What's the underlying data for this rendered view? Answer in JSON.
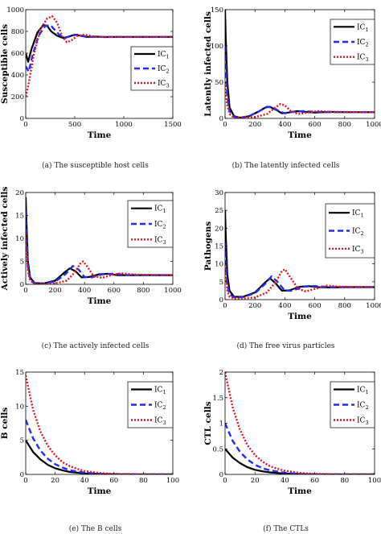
{
  "figure": {
    "captions": [
      "(a) The susceptible host cells",
      "(b) The latently infected cells",
      "(c) The actively infected cells",
      "(d) The free virus particles",
      "(e) The B cells",
      "(f) The CTLs"
    ]
  },
  "colors": {
    "ic1": "#000000",
    "ic2": "#1f2bff",
    "ic3": "#e8141b"
  },
  "chart_data": [
    {
      "type": "line",
      "title": "",
      "xlabel": "Time",
      "ylabel": "Susceptible cells",
      "xlim": [
        0,
        1500
      ],
      "ylim": [
        0,
        1000
      ],
      "xticks": [
        0,
        500,
        1000,
        1500
      ],
      "yticks": [
        0,
        200,
        400,
        600,
        800,
        1000
      ],
      "legend": "right",
      "grid": false,
      "series": [
        {
          "name": "IC",
          "sub": "1",
          "color": "#000000",
          "dash": "solid",
          "x": [
            0,
            25,
            60,
            120,
            180,
            220,
            260,
            320,
            380,
            430,
            500,
            560,
            620,
            700,
            800,
            1000,
            1500
          ],
          "y": [
            600,
            520,
            640,
            790,
            860,
            850,
            800,
            760,
            740,
            750,
            770,
            760,
            750,
            752,
            748,
            750,
            750
          ]
        },
        {
          "name": "IC",
          "sub": "2",
          "color": "#1f2bff",
          "dash": "dashed",
          "x": [
            0,
            30,
            70,
            130,
            200,
            250,
            290,
            340,
            400,
            460,
            530,
            600,
            680,
            800,
            1000,
            1500
          ],
          "y": [
            480,
            430,
            580,
            760,
            850,
            860,
            820,
            770,
            740,
            760,
            770,
            755,
            750,
            750,
            750,
            750
          ]
        },
        {
          "name": "IC",
          "sub": "3",
          "color": "#e8141b",
          "dash": "dotted",
          "x": [
            0,
            30,
            80,
            150,
            220,
            270,
            320,
            370,
            420,
            470,
            530,
            600,
            680,
            800,
            1000,
            1500
          ],
          "y": [
            200,
            320,
            580,
            820,
            920,
            940,
            880,
            760,
            700,
            720,
            760,
            770,
            755,
            750,
            750,
            750
          ]
        }
      ]
    },
    {
      "type": "line",
      "title": "",
      "xlabel": "Time",
      "ylabel": "Latently infected cells",
      "xlim": [
        0,
        1000
      ],
      "ylim": [
        0,
        150
      ],
      "xticks": [
        0,
        200,
        400,
        600,
        800,
        1000
      ],
      "yticks": [
        0,
        50,
        100,
        150
      ],
      "legend": "top-right",
      "grid": false,
      "series": [
        {
          "name": "IC",
          "sub": "1",
          "color": "#000000",
          "dash": "solid",
          "x": [
            0,
            5,
            15,
            30,
            60,
            100,
            160,
            220,
            270,
            300,
            340,
            380,
            420,
            480,
            540,
            600,
            700,
            800,
            1000
          ],
          "y": [
            150,
            110,
            50,
            15,
            3,
            1,
            3,
            9,
            15,
            16,
            12,
            7,
            8,
            10,
            9,
            8,
            9,
            8.5,
            8.5
          ]
        },
        {
          "name": "IC",
          "sub": "2",
          "color": "#1f2bff",
          "dash": "dashed",
          "x": [
            0,
            5,
            15,
            30,
            60,
            100,
            160,
            230,
            280,
            320,
            360,
            400,
            450,
            520,
            600,
            700,
            1000
          ],
          "y": [
            100,
            70,
            30,
            10,
            2,
            1,
            3,
            10,
            16,
            15,
            10,
            7,
            9,
            10,
            9,
            8.5,
            8.5
          ]
        },
        {
          "name": "IC",
          "sub": "3",
          "color": "#e8141b",
          "dash": "dotted",
          "x": [
            0,
            5,
            15,
            30,
            60,
            120,
            200,
            280,
            330,
            370,
            400,
            440,
            490,
            550,
            620,
            700,
            1000
          ],
          "y": [
            50,
            35,
            18,
            6,
            1,
            1,
            2,
            6,
            14,
            20,
            18,
            10,
            6,
            8,
            10,
            9,
            8.5
          ]
        }
      ]
    },
    {
      "type": "line",
      "title": "",
      "xlabel": "Time",
      "ylabel": "Actively infected cells",
      "xlim": [
        0,
        1000
      ],
      "ylim": [
        0,
        20
      ],
      "xticks": [
        0,
        200,
        400,
        600,
        800,
        1000
      ],
      "yticks": [
        0,
        5,
        10,
        15,
        20
      ],
      "legend": "top-right",
      "grid": false,
      "series": [
        {
          "name": "IC",
          "sub": "1",
          "color": "#000000",
          "dash": "solid",
          "x": [
            0,
            5,
            15,
            30,
            60,
            120,
            200,
            260,
            300,
            340,
            380,
            430,
            500,
            560,
            620,
            700,
            800,
            1000
          ],
          "y": [
            19,
            14,
            5,
            1.5,
            0.3,
            0.2,
            0.8,
            2.5,
            3.5,
            2.8,
            1.5,
            1.6,
            2.2,
            2.3,
            2.0,
            2.0,
            2.0,
            2.0
          ]
        },
        {
          "name": "IC",
          "sub": "2",
          "color": "#1f2bff",
          "dash": "dashed",
          "x": [
            0,
            5,
            15,
            30,
            60,
            120,
            200,
            270,
            320,
            360,
            400,
            450,
            520,
            600,
            700,
            1000
          ],
          "y": [
            16,
            11,
            4,
            1,
            0.2,
            0.2,
            0.6,
            2.2,
            4.0,
            3.2,
            1.6,
            1.5,
            2.2,
            2.3,
            2.0,
            2.0
          ]
        },
        {
          "name": "IC",
          "sub": "3",
          "color": "#e8141b",
          "dash": "dotted",
          "x": [
            0,
            5,
            15,
            30,
            60,
            120,
            200,
            280,
            330,
            370,
            390,
            420,
            460,
            520,
            580,
            650,
            750,
            1000
          ],
          "y": [
            11,
            8,
            3,
            0.8,
            0.1,
            0.1,
            0.2,
            0.8,
            2.5,
            4.5,
            5.0,
            3.8,
            1.8,
            1.4,
            2.0,
            2.4,
            2.1,
            2.0
          ]
        }
      ]
    },
    {
      "type": "line",
      "title": "",
      "xlabel": "Time",
      "ylabel": "Pathogens",
      "xlim": [
        0,
        1000
      ],
      "ylim": [
        0,
        30
      ],
      "xticks": [
        0,
        200,
        400,
        600,
        800,
        1000
      ],
      "yticks": [
        0,
        5,
        10,
        15,
        20,
        25,
        30
      ],
      "legend": "right",
      "grid": false,
      "series": [
        {
          "name": "IC",
          "sub": "1",
          "color": "#000000",
          "dash": "solid",
          "x": [
            0,
            5,
            15,
            30,
            60,
            120,
            200,
            260,
            300,
            340,
            380,
            430,
            500,
            560,
            620,
            700,
            800,
            1000
          ],
          "y": [
            25,
            18,
            7,
            2.5,
            0.8,
            0.8,
            2.0,
            4.5,
            6.0,
            4.5,
            2.5,
            2.6,
            3.6,
            3.8,
            3.5,
            3.4,
            3.5,
            3.5
          ]
        },
        {
          "name": "IC",
          "sub": "2",
          "color": "#1f2bff",
          "dash": "dashed",
          "x": [
            0,
            5,
            15,
            30,
            60,
            120,
            200,
            270,
            310,
            350,
            400,
            450,
            520,
            600,
            700,
            1000
          ],
          "y": [
            16,
            11,
            4,
            1.5,
            0.6,
            0.7,
            1.8,
            4.5,
            6.5,
            5.0,
            2.5,
            2.5,
            3.6,
            3.8,
            3.5,
            3.5
          ]
        },
        {
          "name": "IC",
          "sub": "3",
          "color": "#e8141b",
          "dash": "dotted",
          "x": [
            0,
            5,
            15,
            30,
            60,
            120,
            200,
            280,
            340,
            380,
            400,
            440,
            490,
            540,
            600,
            680,
            780,
            1000
          ],
          "y": [
            10,
            7,
            2.5,
            0.8,
            0.3,
            0.3,
            0.6,
            2.0,
            5.0,
            8.0,
            8.5,
            6.0,
            3.0,
            2.3,
            3.0,
            3.9,
            3.6,
            3.5
          ]
        }
      ]
    },
    {
      "type": "line",
      "title": "",
      "xlabel": "Time",
      "ylabel": "B cells",
      "xlim": [
        0,
        100
      ],
      "ylim": [
        0,
        15
      ],
      "xticks": [
        0,
        20,
        40,
        60,
        80,
        100
      ],
      "yticks": [
        0,
        5,
        10,
        15
      ],
      "legend": "top-right",
      "grid": false,
      "series": [
        {
          "name": "IC",
          "sub": "1",
          "color": "#000000",
          "dash": "solid",
          "x": [
            0,
            5,
            10,
            15,
            20,
            25,
            30,
            40,
            50,
            60,
            80,
            100
          ],
          "y": [
            5,
            3.3,
            2.2,
            1.4,
            0.9,
            0.6,
            0.35,
            0.15,
            0.05,
            0.02,
            0,
            0
          ]
        },
        {
          "name": "IC",
          "sub": "2",
          "color": "#1f2bff",
          "dash": "dashed",
          "x": [
            0,
            5,
            10,
            15,
            20,
            25,
            30,
            40,
            50,
            60,
            80,
            100
          ],
          "y": [
            8,
            5.3,
            3.5,
            2.3,
            1.5,
            1.0,
            0.6,
            0.25,
            0.1,
            0.03,
            0,
            0
          ]
        },
        {
          "name": "IC",
          "sub": "3",
          "color": "#e8141b",
          "dash": "dotted",
          "x": [
            0,
            5,
            10,
            15,
            20,
            25,
            30,
            35,
            40,
            50,
            60,
            80,
            100
          ],
          "y": [
            14.5,
            9.5,
            6.3,
            4.2,
            2.8,
            1.8,
            1.2,
            0.8,
            0.5,
            0.2,
            0.07,
            0,
            0
          ]
        }
      ]
    },
    {
      "type": "line",
      "title": "",
      "xlabel": "Time",
      "ylabel": "CTL cells",
      "xlim": [
        0,
        100
      ],
      "ylim": [
        0,
        2
      ],
      "xticks": [
        0,
        20,
        40,
        60,
        80,
        100
      ],
      "yticks": [
        0,
        0.5,
        1,
        1.5,
        2
      ],
      "legend": "top-right",
      "grid": false,
      "series": [
        {
          "name": "IC",
          "sub": "1",
          "color": "#000000",
          "dash": "solid",
          "x": [
            0,
            5,
            10,
            15,
            20,
            25,
            30,
            40,
            50,
            60,
            80,
            100
          ],
          "y": [
            0.5,
            0.33,
            0.22,
            0.14,
            0.09,
            0.06,
            0.04,
            0.015,
            0.005,
            0,
            0,
            0
          ]
        },
        {
          "name": "IC",
          "sub": "2",
          "color": "#1f2bff",
          "dash": "dashed",
          "x": [
            0,
            5,
            10,
            15,
            20,
            25,
            30,
            40,
            50,
            60,
            80,
            100
          ],
          "y": [
            1.0,
            0.66,
            0.44,
            0.29,
            0.19,
            0.12,
            0.08,
            0.03,
            0.01,
            0,
            0,
            0
          ]
        },
        {
          "name": "IC",
          "sub": "3",
          "color": "#e8141b",
          "dash": "dotted",
          "x": [
            0,
            5,
            10,
            15,
            20,
            25,
            30,
            35,
            40,
            50,
            60,
            80,
            100
          ],
          "y": [
            2.0,
            1.32,
            0.87,
            0.57,
            0.38,
            0.25,
            0.16,
            0.11,
            0.07,
            0.03,
            0.01,
            0,
            0
          ]
        }
      ]
    }
  ]
}
